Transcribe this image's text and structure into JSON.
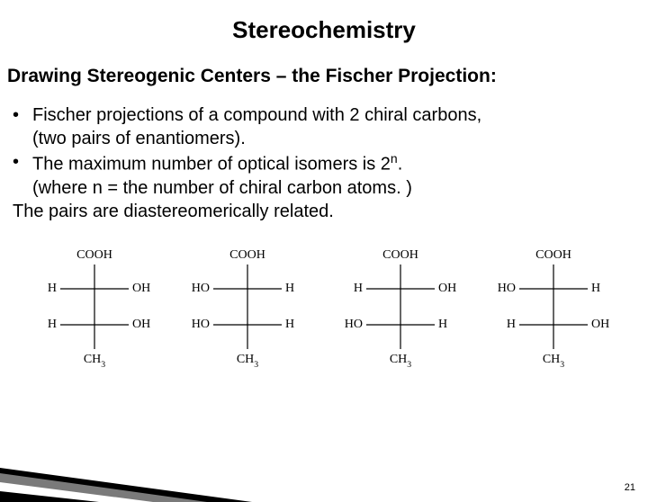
{
  "title": "Stereochemistry",
  "subtitle": "Drawing Stereogenic Centers – the Fischer Projection:",
  "bullets": {
    "b1": "Fischer projections of a compound with 2 chiral carbons,",
    "b1b": "(two pairs of enantiomers).",
    "b2a": "The maximum number of optical isomers is 2",
    "b2n": "n",
    "b2b": ".",
    "b2c": "(where n = the number of chiral carbon atoms. )",
    "b3": "The pairs are diastereomerically related."
  },
  "structures": [
    {
      "top": "COOH",
      "bottom": "CH",
      "bottom_sub": "3",
      "c1_left": "H",
      "c1_right": "OH",
      "c2_left": "H",
      "c2_right": "OH"
    },
    {
      "top": "COOH",
      "bottom": "CH",
      "bottom_sub": "3",
      "c1_left": "HO",
      "c1_right": "H",
      "c2_left": "HO",
      "c2_right": "H"
    },
    {
      "top": "COOH",
      "bottom": "CH",
      "bottom_sub": "3",
      "c1_left": "H",
      "c1_right": "OH",
      "c2_left": "HO",
      "c2_right": "H"
    },
    {
      "top": "COOH",
      "bottom": "CH",
      "bottom_sub": "3",
      "c1_left": "HO",
      "c1_right": "H",
      "c2_left": "H",
      "c2_right": "OH"
    }
  ],
  "page_number": "21",
  "colors": {
    "text": "#000000",
    "bg": "#ffffff",
    "wedge_dark": "#000000",
    "wedge_mid": "#7a7a7a",
    "wedge_light": "#ffffff"
  },
  "diagram_style": {
    "font_family": "Times New Roman, serif",
    "font_size": 14,
    "line_stroke": "#000000",
    "line_width": 1.2
  }
}
